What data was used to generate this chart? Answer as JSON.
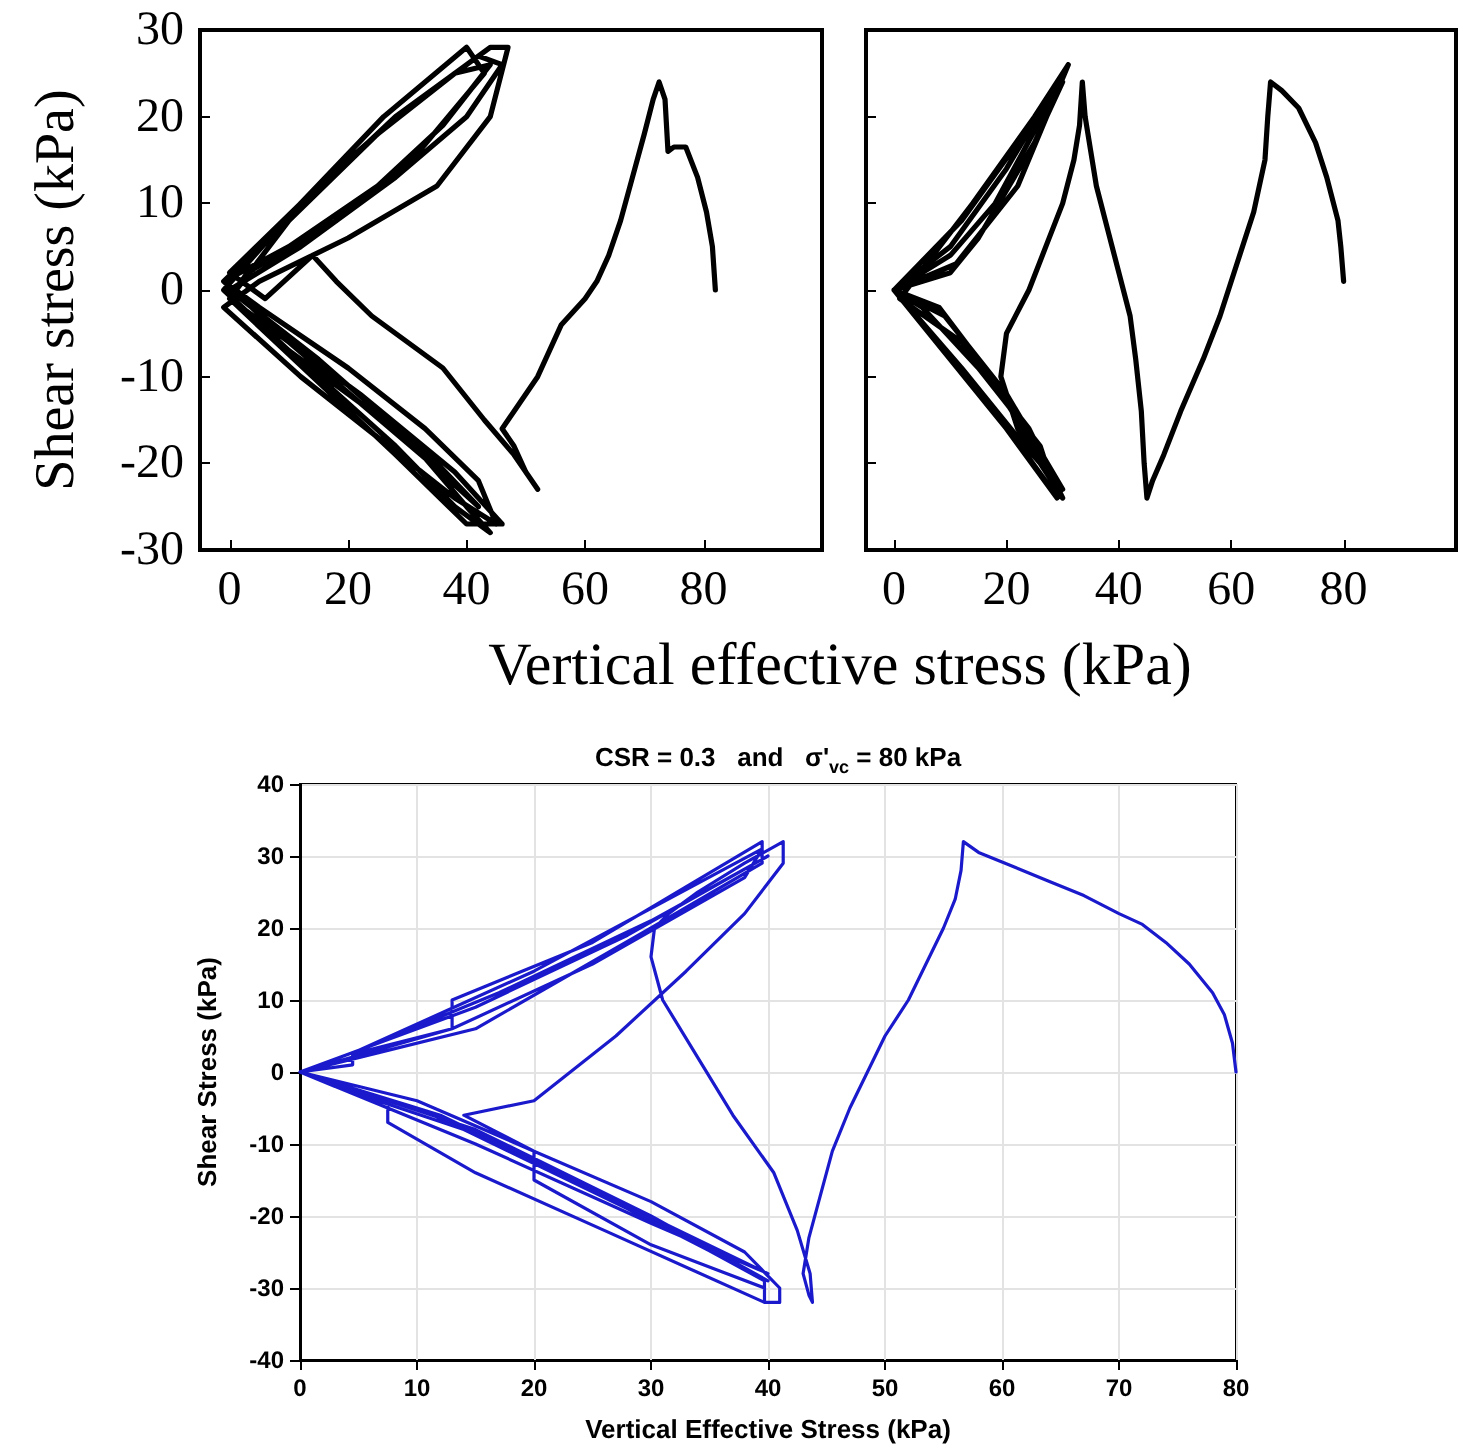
{
  "chart_data": [
    {
      "type": "line",
      "ylabel": "Shear stress (kPa)",
      "xlabel": "Vertical effective stress (kPa)",
      "xlim": [
        -5,
        100
      ],
      "ylim": [
        -30,
        30
      ],
      "xticks": [
        0,
        20,
        40,
        60,
        80
      ],
      "yticks": [
        -30,
        -20,
        -10,
        0,
        10,
        20,
        30
      ],
      "grid": false,
      "marker": "none",
      "line_style": "solid",
      "series": [
        {
          "color": "#000000",
          "x": [
            82,
            81.5,
            80.5,
            79,
            77,
            75,
            74,
            73.5,
            72.5,
            71.5,
            70,
            68,
            66,
            64,
            62,
            60,
            58,
            56,
            54,
            52,
            49,
            46,
            48,
            50,
            52,
            48,
            43,
            36,
            30,
            24,
            18,
            14,
            6,
            0,
            15,
            30,
            44,
            47,
            44,
            35,
            20,
            5,
            -1,
            12,
            25,
            38,
            45,
            42,
            33,
            20,
            5,
            -1,
            14,
            28,
            42,
            46,
            40,
            28,
            12,
            0,
            15,
            30,
            40,
            44,
            38,
            28,
            15,
            0,
            10,
            25,
            38,
            44,
            36,
            25,
            10,
            -1,
            10,
            22,
            34,
            42,
            35,
            24,
            10,
            -1,
            12,
            26,
            40,
            43,
            32,
            18,
            3,
            0,
            14,
            28,
            40,
            46,
            38,
            22,
            0
          ],
          "values": [
            0,
            5,
            9,
            13,
            16.5,
            16.5,
            16,
            22,
            24,
            22,
            18,
            13,
            8,
            4,
            1,
            -1,
            -2.5,
            -4,
            -7,
            -10,
            -13,
            -16,
            -18,
            -21,
            -23,
            -19,
            -15,
            -9,
            -6,
            -3,
            1,
            4,
            -1,
            2,
            12,
            21,
            28,
            28,
            20,
            12,
            6,
            1,
            -2,
            -10,
            -17,
            -24,
            -27,
            -22,
            -16,
            -9,
            -2,
            1,
            11,
            20,
            27,
            26,
            20,
            13,
            5,
            0,
            -8,
            -17,
            -25,
            -28,
            -25,
            -18,
            -10,
            -1,
            8,
            18,
            25,
            26,
            19,
            12,
            5,
            1,
            -6,
            -13,
            -20,
            -25,
            -20,
            -14,
            -7,
            0,
            10,
            20,
            28,
            25,
            16,
            8,
            2,
            -1,
            -10,
            -19,
            -27,
            -27,
            -21,
            -12,
            -1
          ]
        }
      ]
    },
    {
      "type": "line",
      "xlim": [
        -5,
        100
      ],
      "ylim": [
        -30,
        30
      ],
      "xticks": [
        0,
        20,
        40,
        60,
        80
      ],
      "yticks": [
        -30,
        -20,
        -10,
        0,
        10,
        20,
        30
      ],
      "tick_labels": "x",
      "grid": false,
      "marker": "none",
      "line_style": "solid",
      "series": [
        {
          "color": "#000000",
          "x": [
            80,
            79.5,
            79,
            77,
            75,
            72,
            69,
            67,
            66.5,
            66,
            64,
            61,
            58,
            55,
            51,
            48,
            46,
            45,
            44.5,
            44,
            43,
            42,
            40,
            38,
            36,
            35,
            34,
            33.5,
            33,
            32,
            30,
            27,
            24,
            20,
            19,
            22,
            28,
            30,
            25,
            15,
            8,
            0,
            10,
            20,
            31,
            28,
            18,
            10,
            0,
            10,
            20,
            29,
            26,
            15,
            5,
            0,
            12,
            22,
            30,
            25,
            15,
            10,
            0,
            8,
            18,
            28,
            30,
            24,
            12,
            1,
            14,
            25,
            31,
            22,
            11,
            0,
            12,
            22,
            30,
            20,
            9,
            0
          ],
          "values": [
            1,
            5,
            8,
            13,
            17,
            21,
            23,
            24,
            20,
            15,
            9,
            3,
            -3,
            -8,
            -14,
            -19,
            -22,
            -24,
            -20,
            -14,
            -8,
            -3,
            2,
            7,
            12,
            16,
            20,
            24,
            19,
            15,
            10,
            5,
            0,
            -5,
            -10,
            -16,
            -22,
            -24,
            -18,
            -8,
            -2,
            0,
            5,
            14,
            26,
            22,
            10,
            4,
            0,
            -8,
            -16,
            -24,
            -18,
            -9,
            -2,
            0,
            8,
            17,
            24,
            17,
            6,
            2,
            0,
            -6,
            -14,
            -23,
            -24,
            -16,
            -6,
            -1,
            10,
            20,
            26,
            12,
            3,
            0,
            -9,
            -17,
            -23,
            -12,
            -3,
            0
          ]
        }
      ]
    },
    {
      "type": "line",
      "title": "CSR = 0.3   and   σ'$_{vc}$ = 80 kPa",
      "xlabel": "Vertical Effective Stress (kPa)",
      "ylabel": "Shear Stress (kPa)",
      "xlim": [
        0,
        80
      ],
      "ylim": [
        -40,
        40
      ],
      "xticks": [
        0,
        10,
        20,
        30,
        40,
        50,
        60,
        70,
        80
      ],
      "yticks": [
        -40,
        -30,
        -20,
        -10,
        0,
        10,
        20,
        30,
        40
      ],
      "grid": true,
      "marker": "none",
      "line_style": "solid",
      "series": [
        {
          "color": "#1a1acc",
          "x": [
            80,
            79.7,
            79,
            78,
            76,
            74,
            72,
            70,
            67,
            64,
            61,
            58,
            56.7,
            56.5,
            56,
            55,
            53.5,
            52,
            50,
            48.5,
            47,
            45.5,
            44.5,
            43.5,
            43,
            43.5,
            43.8,
            43.6,
            42.5,
            40.5,
            37,
            34,
            31,
            30,
            30.3,
            31.5,
            34,
            38,
            41.3,
            41.3,
            38,
            33,
            27,
            20,
            14,
            20,
            30,
            38,
            41,
            41,
            39.7,
            39.7,
            30,
            20,
            20,
            10,
            0,
            13,
            13,
            25,
            39.5,
            39.5,
            30,
            15,
            5,
            0,
            10,
            25,
            39.7,
            39.7,
            26,
            15,
            7.5,
            7.5,
            0,
            5,
            20,
            39.5,
            38,
            25,
            13,
            4.5,
            4.5,
            0,
            15,
            30,
            40,
            28,
            14,
            3,
            0,
            15,
            28,
            40,
            30,
            17,
            5,
            0,
            12,
            26,
            40,
            30,
            15,
            0
          ],
          "values": [
            0,
            4,
            8,
            11,
            15,
            18,
            20.5,
            22,
            24.5,
            26.5,
            28.5,
            30.5,
            32,
            28,
            24,
            20,
            15,
            10,
            5,
            0,
            -5,
            -11,
            -17,
            -23,
            -28,
            -31,
            -32,
            -28,
            -22,
            -14,
            -6,
            2,
            10,
            16,
            20,
            22,
            25,
            29,
            32,
            29,
            22,
            14,
            5,
            -4,
            -6,
            -11,
            -18,
            -25,
            -30,
            -32,
            -32,
            -30,
            -24,
            -15,
            -11,
            -4,
            0,
            6,
            10,
            18,
            32,
            29,
            20,
            6,
            2,
            0,
            -5,
            -16,
            -29,
            -32,
            -22,
            -14,
            -7,
            -4,
            0,
            3,
            14,
            31,
            27,
            15,
            6,
            2.5,
            1,
            0,
            -8,
            -20,
            -29,
            -19,
            -8,
            -2,
            0,
            9,
            19,
            30,
            21,
            11,
            3,
            0,
            -6,
            -17,
            -28,
            -21,
            -10,
            0
          ]
        }
      ]
    }
  ]
}
